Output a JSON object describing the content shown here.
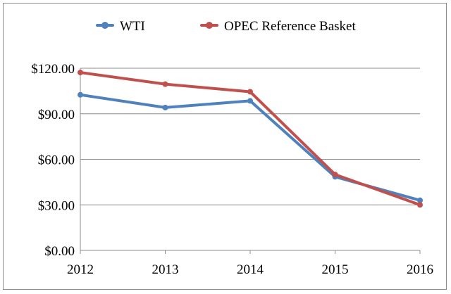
{
  "chart_data": {
    "type": "line",
    "title": "",
    "xlabel": "",
    "ylabel": "",
    "categories": [
      "2012",
      "2013",
      "2014",
      "2015",
      "2016"
    ],
    "ylim": [
      0,
      120
    ],
    "yticks": [
      0,
      30,
      60,
      90,
      120
    ],
    "ytick_labels": [
      "$0.00",
      "$30.00",
      "$60.00",
      "$90.00",
      "$120.00"
    ],
    "grid": true,
    "legend_position": "top",
    "series": [
      {
        "name": "WTI",
        "color": "#4f81bd",
        "values": [
          102.5,
          94.1,
          98.5,
          48.5,
          33.0
        ]
      },
      {
        "name": "OPEC Reference Basket",
        "color": "#c0504d",
        "values": [
          117.2,
          109.5,
          104.5,
          50.0,
          30.0
        ]
      }
    ]
  }
}
